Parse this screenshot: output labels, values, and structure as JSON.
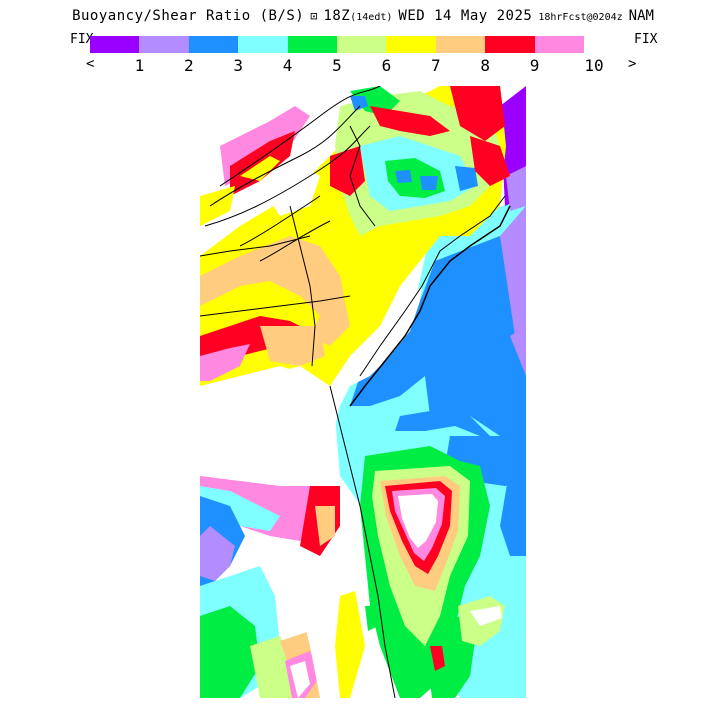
{
  "header": {
    "title": "Buoyancy/Shear Ratio (B/S)",
    "icon_glyph": "⊡",
    "run": "18Z",
    "run_local": "(14edt)",
    "date": "WED 14 May 2025",
    "forecast": "18hrFcst@0204z",
    "model": "NAM"
  },
  "controls": {
    "fix_left": "FIX",
    "fix_right": "FIX",
    "prev": "<",
    "next": ">"
  },
  "legend": {
    "colors": [
      "#9900ff",
      "#b38cff",
      "#1e90ff",
      "#7fffff",
      "#00ee44",
      "#ccff88",
      "#ffff00",
      "#ffcc80",
      "#ff0022",
      "#ff88e0"
    ],
    "ticks": [
      "1",
      "2",
      "3",
      "4",
      "5",
      "6",
      "7",
      "8",
      "9",
      "10"
    ]
  },
  "map": {
    "description_colors": {
      "white": "#ffffff",
      "land_pink": "#ff88e0",
      "red": "#ff0022",
      "orange": "#ffcc80",
      "yellow": "#ffff00",
      "light_green": "#ccff88",
      "green": "#00ee44",
      "cyan": "#7fffff",
      "blue": "#1e90ff",
      "lavender": "#b38cff",
      "purple": "#9900ff"
    }
  }
}
